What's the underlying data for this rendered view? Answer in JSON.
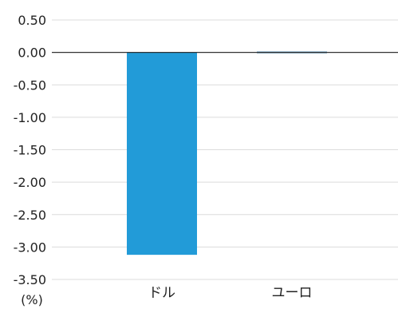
{
  "chart_data": {
    "type": "bar",
    "categories": [
      "ドル",
      "ユーロ"
    ],
    "values": [
      -3.12,
      0.02
    ],
    "ylim": [
      -3.5,
      0.5
    ],
    "yticks": [
      "0.50",
      "0.00",
      "-0.50",
      "-1.00",
      "-1.50",
      "-2.00",
      "-2.50",
      "-3.00",
      "-3.50"
    ],
    "ytick_values": [
      0.5,
      0.0,
      -0.5,
      -1.0,
      -1.5,
      -2.0,
      -2.5,
      -3.0,
      -3.5
    ],
    "ylabel": "(%)",
    "grid": true,
    "colors": {
      "bars": [
        "#229BD8",
        "#1F6FA3"
      ],
      "grid": "#dcdcdc",
      "zero_line": "#333333"
    }
  }
}
